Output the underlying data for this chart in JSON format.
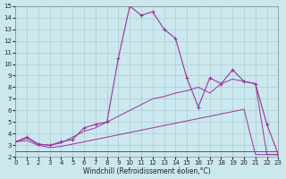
{
  "xlabel": "Windchill (Refroidissement éolien,°C)",
  "xlim": [
    0,
    23
  ],
  "ylim": [
    2,
    15
  ],
  "xticks": [
    0,
    1,
    2,
    3,
    4,
    5,
    6,
    7,
    8,
    9,
    10,
    11,
    12,
    13,
    14,
    15,
    16,
    17,
    18,
    19,
    20,
    21,
    22,
    23
  ],
  "yticks": [
    2,
    3,
    4,
    5,
    6,
    7,
    8,
    9,
    10,
    11,
    12,
    13,
    14,
    15
  ],
  "bg_color": "#cce8ef",
  "line_color": "#993399",
  "grid_color": "#aacccc",
  "series": [
    {
      "x": [
        0,
        1,
        2,
        3,
        4,
        5,
        6,
        7,
        8,
        9,
        10,
        11,
        12,
        13,
        14,
        15,
        16,
        17,
        18,
        19,
        20,
        21,
        22,
        23
      ],
      "y": [
        3.3,
        3.7,
        3.1,
        3.0,
        3.3,
        3.5,
        4.5,
        4.8,
        5.0,
        10.5,
        15.0,
        14.2,
        14.5,
        13.0,
        12.2,
        8.8,
        6.3,
        8.8,
        8.3,
        9.5,
        8.5,
        8.3,
        4.8,
        2.2
      ],
      "marker": "+",
      "linestyle": "-",
      "linewidth": 0.8
    },
    {
      "x": [
        0,
        1,
        2,
        3,
        4,
        5,
        6,
        7,
        8,
        9,
        10,
        11,
        12,
        13,
        14,
        15,
        16,
        17,
        18,
        19,
        20,
        21,
        22,
        23
      ],
      "y": [
        3.3,
        3.4,
        3.0,
        2.8,
        2.9,
        3.1,
        3.3,
        3.5,
        3.7,
        3.9,
        4.1,
        4.3,
        4.5,
        4.7,
        4.9,
        5.1,
        5.3,
        5.5,
        5.7,
        5.9,
        6.1,
        2.2,
        2.2,
        2.2
      ],
      "marker": null,
      "linestyle": "-",
      "linewidth": 0.7
    },
    {
      "x": [
        0,
        1,
        2,
        3,
        4,
        5,
        6,
        7,
        8,
        9,
        10,
        11,
        12,
        13,
        14,
        15,
        16,
        17,
        18,
        19,
        20,
        21,
        22,
        23
      ],
      "y": [
        3.3,
        3.6,
        3.1,
        3.0,
        3.2,
        3.7,
        4.2,
        4.5,
        5.0,
        5.5,
        6.0,
        6.5,
        7.0,
        7.2,
        7.5,
        7.7,
        8.0,
        7.5,
        8.3,
        8.7,
        8.5,
        8.3,
        2.2,
        2.2
      ],
      "marker": null,
      "linestyle": "-",
      "linewidth": 0.7
    },
    {
      "x": [
        0,
        2,
        3,
        4,
        5,
        6,
        7,
        8,
        9,
        10,
        11,
        12,
        13,
        14,
        15,
        16,
        17,
        18,
        19,
        20,
        21,
        22,
        23
      ],
      "y": [
        2.5,
        2.5,
        2.5,
        2.5,
        2.5,
        2.5,
        2.5,
        2.5,
        2.5,
        2.5,
        2.5,
        2.5,
        2.5,
        2.5,
        2.5,
        2.5,
        2.5,
        2.5,
        2.5,
        2.5,
        2.5,
        2.5,
        2.5
      ],
      "marker": null,
      "linestyle": "-",
      "linewidth": 0.7
    }
  ]
}
